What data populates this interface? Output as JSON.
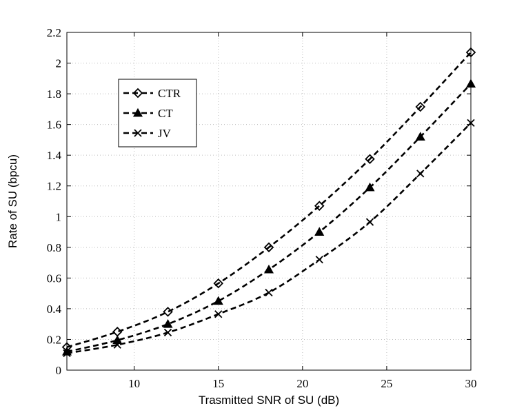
{
  "chart_data": {
    "type": "line",
    "title": "",
    "xlabel": "Trasmitted SNR of SU (dB)",
    "ylabel": "Rate of SU (bpcu)",
    "xlim": [
      6,
      30
    ],
    "ylim": [
      0,
      2.2
    ],
    "xticks": [
      10,
      15,
      20,
      25,
      30
    ],
    "yticks": [
      0,
      0.2,
      0.4,
      0.6,
      0.8,
      1,
      1.2,
      1.4,
      1.6,
      1.8,
      2,
      2.2
    ],
    "xtick_labels": [
      "10",
      "15",
      "20",
      "25",
      "30"
    ],
    "ytick_labels": [
      "0",
      "0.2",
      "0.4",
      "0.6",
      "0.8",
      "1",
      "1.2",
      "1.4",
      "1.6",
      "1.8",
      "2",
      "2.2"
    ],
    "grid": true,
    "legend_position": "upper-left",
    "x": [
      6,
      9,
      12,
      15,
      18,
      21,
      24,
      27,
      30
    ],
    "series": [
      {
        "name": "CTR",
        "marker": "diamond",
        "values": [
          0.15,
          0.25,
          0.38,
          0.565,
          0.8,
          1.07,
          1.375,
          1.715,
          2.07
        ]
      },
      {
        "name": "CT",
        "marker": "triangle",
        "values": [
          0.12,
          0.195,
          0.3,
          0.45,
          0.655,
          0.9,
          1.19,
          1.52,
          1.865
        ]
      },
      {
        "name": "JV",
        "marker": "x",
        "values": [
          0.11,
          0.165,
          0.245,
          0.365,
          0.505,
          0.72,
          0.965,
          1.28,
          1.61
        ]
      }
    ]
  }
}
